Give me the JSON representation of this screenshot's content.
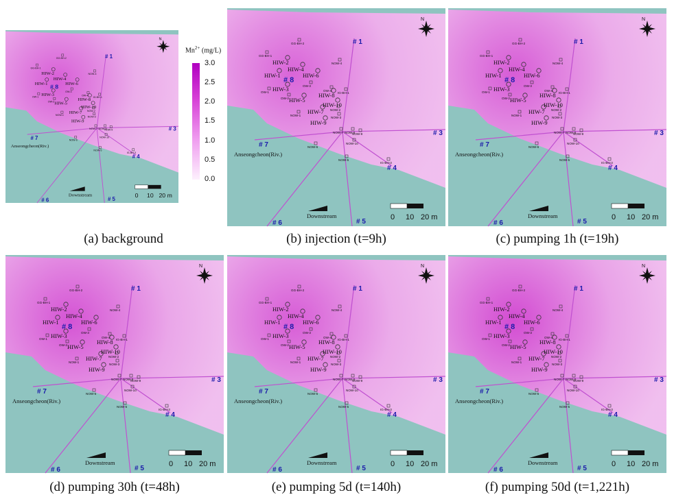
{
  "figure": {
    "legend": {
      "title": "Mn",
      "title_sup": "2+",
      "title_unit": "(mg/L)",
      "ticks": [
        "3.0",
        "2.5",
        "2.0",
        "1.5",
        "1.0",
        "0.5",
        "0.0"
      ],
      "colors": {
        "high": "#b000c0",
        "low": "#fdf0fd"
      }
    },
    "map_labels": {
      "river": "Anseongcheon(Riv.)",
      "flow": "Downstream",
      "scale": [
        "0",
        "10",
        "20 m"
      ],
      "north": "N",
      "lines": [
        "# 1",
        "# 3",
        "# 4",
        "# 5",
        "# 6",
        "# 7",
        "# 8"
      ],
      "wells_big": [
        "HIW-1",
        "HIW-2",
        "HIW-3",
        "HIW-4",
        "HIW-5",
        "HIW-6",
        "HIW-7",
        "HIW-8",
        "HIW-9",
        "HIW-10"
      ],
      "wells_small": [
        "GG-BH-1",
        "GG-BH-2",
        "NOW-4",
        "OW-1",
        "OW-2",
        "OW-3",
        "OW-4",
        "IG-BH-1",
        "NOW-1",
        "NOW-2",
        "NOW-3",
        "NOW-6",
        "NOW-7",
        "NOW-8",
        "NOW-9",
        "NOW-10",
        "NOW-5",
        "IG-BH-3"
      ]
    },
    "colors": {
      "river": "#8fc4c0",
      "plume": "#cc33cc",
      "base": "#f7d8f5",
      "line": "#c050d0",
      "label": "#1a1aaa"
    },
    "panels": [
      {
        "caption": "(a) background",
        "plume_level": 0.55
      },
      {
        "caption": "(b) injection (t=9h)",
        "plume_level": 0.5
      },
      {
        "caption": "(c) pumping 1h (t=19h)",
        "plume_level": 0.55
      },
      {
        "caption": "(d) pumping 30h (t=48h)",
        "plume_level": 0.6
      },
      {
        "caption": "(e) pumping 5d (t=140h)",
        "plume_level": 0.55
      },
      {
        "caption": "(f) pumping 50d (t=1,221h)",
        "plume_level": 0.65
      }
    ]
  }
}
